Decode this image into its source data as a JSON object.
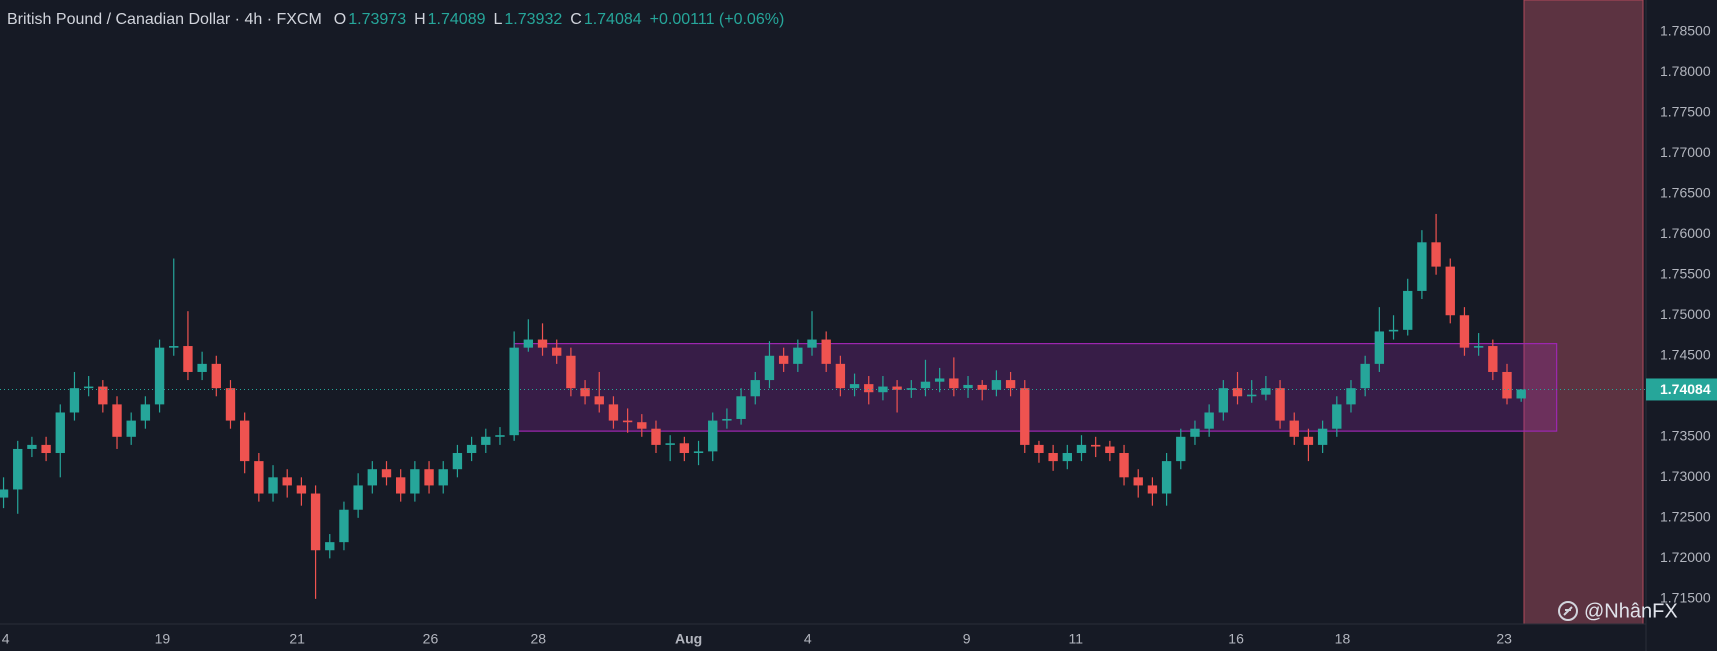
{
  "chart_data": {
    "type": "candlestick",
    "title": "British Pound / Canadian Dollar · 4h · FXCM",
    "ohlc_labels": [
      "O",
      "H",
      "L",
      "C"
    ],
    "change": "+0.00111 (+0.06%)",
    "watermark": "@NhânFX",
    "up_color": "#26a69a",
    "down_color": "#ef5350",
    "grid": true,
    "open": [
      1.7275,
      1.7285,
      1.7335,
      1.734,
      1.733,
      1.738,
      1.741,
      1.7412,
      1.739,
      1.735,
      1.737,
      1.739,
      1.746,
      1.7462,
      1.743,
      1.744,
      1.741,
      1.737,
      1.732,
      1.728,
      1.73,
      1.729,
      1.728,
      1.721,
      1.722,
      1.726,
      1.729,
      1.731,
      1.73,
      1.728,
      1.731,
      1.729,
      1.731,
      1.733,
      1.734,
      1.735,
      1.7352,
      1.746,
      1.747,
      1.746,
      1.745,
      1.741,
      1.74,
      1.739,
      1.737,
      1.7368,
      1.736,
      1.734,
      1.7342,
      1.733,
      1.7332,
      1.737,
      1.7372,
      1.74,
      1.742,
      1.745,
      1.744,
      1.746,
      1.747,
      1.744,
      1.741,
      1.7415,
      1.7405,
      1.7412,
      1.7408,
      1.741,
      1.7418,
      1.7422,
      1.741,
      1.7414,
      1.7408,
      1.742,
      1.741,
      1.734,
      1.733,
      1.732,
      1.733,
      1.734,
      1.7338,
      1.733,
      1.73,
      1.729,
      1.728,
      1.732,
      1.735,
      1.736,
      1.738,
      1.741,
      1.74,
      1.7402,
      1.741,
      1.737,
      1.735,
      1.734,
      1.736,
      1.739,
      1.741,
      1.744,
      1.748,
      1.7482,
      1.753,
      1.759,
      1.756,
      1.75,
      1.746,
      1.7462,
      1.743,
      1.73973
    ],
    "high": [
      1.73,
      1.7345,
      1.735,
      1.735,
      1.739,
      1.743,
      1.7425,
      1.742,
      1.74,
      1.738,
      1.74,
      1.747,
      1.757,
      1.7505,
      1.7455,
      1.745,
      1.742,
      1.738,
      1.733,
      1.7315,
      1.731,
      1.73,
      1.729,
      1.723,
      1.727,
      1.7305,
      1.732,
      1.732,
      1.731,
      1.732,
      1.732,
      1.732,
      1.734,
      1.735,
      1.736,
      1.7362,
      1.748,
      1.7495,
      1.749,
      1.747,
      1.746,
      1.742,
      1.743,
      1.74,
      1.7385,
      1.7378,
      1.737,
      1.7352,
      1.735,
      1.7345,
      1.738,
      1.7385,
      1.741,
      1.743,
      1.7468,
      1.746,
      1.747,
      1.7505,
      1.748,
      1.745,
      1.7428,
      1.7425,
      1.7425,
      1.742,
      1.742,
      1.7445,
      1.7435,
      1.7448,
      1.7425,
      1.742,
      1.7432,
      1.743,
      1.742,
      1.7345,
      1.734,
      1.734,
      1.7352,
      1.735,
      1.7345,
      1.734,
      1.731,
      1.73,
      1.733,
      1.736,
      1.737,
      1.739,
      1.742,
      1.743,
      1.742,
      1.7425,
      1.742,
      1.738,
      1.736,
      1.737,
      1.74,
      1.742,
      1.745,
      1.751,
      1.75,
      1.7545,
      1.7605,
      1.7625,
      1.757,
      1.751,
      1.7478,
      1.747,
      1.744,
      1.74089
    ],
    "low": [
      1.7262,
      1.7255,
      1.7325,
      1.732,
      1.73,
      1.737,
      1.74,
      1.738,
      1.7335,
      1.734,
      1.736,
      1.738,
      1.745,
      1.742,
      1.742,
      1.74,
      1.736,
      1.7305,
      1.727,
      1.727,
      1.7275,
      1.7265,
      1.715,
      1.72,
      1.721,
      1.725,
      1.728,
      1.729,
      1.727,
      1.727,
      1.728,
      1.728,
      1.73,
      1.732,
      1.733,
      1.734,
      1.7345,
      1.7455,
      1.745,
      1.744,
      1.74,
      1.739,
      1.738,
      1.736,
      1.7355,
      1.735,
      1.733,
      1.732,
      1.732,
      1.7315,
      1.732,
      1.736,
      1.7365,
      1.739,
      1.741,
      1.743,
      1.743,
      1.745,
      1.743,
      1.74,
      1.74,
      1.739,
      1.7395,
      1.738,
      1.7398,
      1.74,
      1.7405,
      1.74,
      1.7398,
      1.7395,
      1.74,
      1.74,
      1.733,
      1.7318,
      1.7308,
      1.731,
      1.732,
      1.7325,
      1.732,
      1.729,
      1.7275,
      1.7265,
      1.7265,
      1.731,
      1.734,
      1.735,
      1.737,
      1.739,
      1.7392,
      1.7395,
      1.736,
      1.734,
      1.732,
      1.733,
      1.735,
      1.738,
      1.74,
      1.743,
      1.747,
      1.7475,
      1.752,
      1.755,
      1.749,
      1.745,
      1.745,
      1.742,
      1.739,
      1.73932
    ],
    "close": [
      1.7285,
      1.7335,
      1.734,
      1.733,
      1.738,
      1.741,
      1.7412,
      1.739,
      1.735,
      1.737,
      1.739,
      1.746,
      1.7462,
      1.743,
      1.744,
      1.741,
      1.737,
      1.732,
      1.728,
      1.73,
      1.729,
      1.728,
      1.721,
      1.722,
      1.726,
      1.729,
      1.731,
      1.73,
      1.728,
      1.731,
      1.729,
      1.731,
      1.733,
      1.734,
      1.735,
      1.7352,
      1.746,
      1.747,
      1.746,
      1.745,
      1.741,
      1.74,
      1.739,
      1.737,
      1.7368,
      1.736,
      1.734,
      1.7342,
      1.733,
      1.7332,
      1.737,
      1.7372,
      1.74,
      1.742,
      1.745,
      1.744,
      1.746,
      1.747,
      1.744,
      1.741,
      1.7415,
      1.7405,
      1.7412,
      1.7408,
      1.741,
      1.7418,
      1.7422,
      1.741,
      1.7414,
      1.7408,
      1.742,
      1.741,
      1.734,
      1.733,
      1.732,
      1.733,
      1.734,
      1.7338,
      1.733,
      1.73,
      1.729,
      1.728,
      1.732,
      1.735,
      1.736,
      1.738,
      1.741,
      1.74,
      1.7402,
      1.741,
      1.737,
      1.735,
      1.734,
      1.736,
      1.739,
      1.741,
      1.744,
      1.748,
      1.7482,
      1.753,
      1.759,
      1.756,
      1.75,
      1.746,
      1.7462,
      1.743,
      1.73973,
      1.74084
    ],
    "zone": {
      "start": 36,
      "end": 109.5,
      "top": 1.7465,
      "bottom": 1.7357,
      "color": "#9c27b0"
    },
    "xlim": [
      -0.25,
      115.8
    ],
    "xticks": [
      {
        "value": 0.15,
        "label": "4"
      },
      {
        "value": 11.2,
        "label": "19"
      },
      {
        "value": 20.7,
        "label": "21"
      },
      {
        "value": 30.1,
        "label": "26"
      },
      {
        "value": 37.7,
        "label": "28"
      },
      {
        "value": 48.3,
        "label": "Aug"
      },
      {
        "value": 56.7,
        "label": "4"
      },
      {
        "value": 67.9,
        "label": "9"
      },
      {
        "value": 75.6,
        "label": "11"
      },
      {
        "value": 86.9,
        "label": "16"
      },
      {
        "value": 94.4,
        "label": "18"
      },
      {
        "value": 105.8,
        "label": "23"
      }
    ],
    "ylim": [
      1.7119,
      1.7889
    ],
    "yticks": [
      {
        "value": 1.715,
        "label": "1.71500"
      },
      {
        "value": 1.72,
        "label": "1.72000"
      },
      {
        "value": 1.725,
        "label": "1.72500"
      },
      {
        "value": 1.73,
        "label": "1.73000"
      },
      {
        "value": 1.735,
        "label": "1.73500"
      },
      {
        "value": 1.74,
        "label": "1.74000"
      },
      {
        "value": 1.745,
        "label": "1.74500"
      },
      {
        "value": 1.75,
        "label": "1.75000"
      },
      {
        "value": 1.755,
        "label": "1.75500"
      },
      {
        "value": 1.76,
        "label": "1.76000"
      },
      {
        "value": 1.765,
        "label": "1.76500"
      },
      {
        "value": 1.77,
        "label": "1.77000"
      },
      {
        "value": 1.775,
        "label": "1.77500"
      },
      {
        "value": 1.78,
        "label": "1.78000"
      },
      {
        "value": 1.785,
        "label": "1.78500"
      }
    ]
  }
}
